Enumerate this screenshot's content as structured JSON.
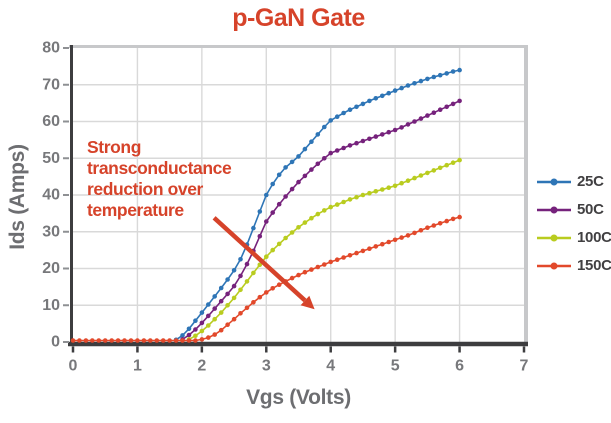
{
  "chart_data": {
    "type": "line",
    "title": "p-GaN Gate",
    "title_color": "#d6432a",
    "xlabel": "Vgs (Volts)",
    "ylabel": "Ids (Amps)",
    "xlim": [
      0,
      7
    ],
    "ylim": [
      0,
      80
    ],
    "x_ticks": [
      0,
      1,
      2,
      3,
      4,
      5,
      6,
      7
    ],
    "y_ticks": [
      0,
      10,
      20,
      30,
      40,
      50,
      60,
      70,
      80
    ],
    "grid": true,
    "legend_position": "right-outside",
    "x_step": 0.1,
    "series": [
      {
        "name": "25C",
        "color": "#2e75b6",
        "x0": 1.6,
        "values": [
          0.6,
          1.8,
          3.6,
          5.8,
          8,
          10.2,
          12.4,
          14.7,
          17,
          19.5,
          22.5,
          26.5,
          31,
          35.5,
          40,
          43,
          45.5,
          47.5,
          49,
          50.5,
          52.5,
          54.5,
          56.5,
          58.5,
          60.3,
          61.3,
          62.3,
          63.2,
          64,
          64.8,
          65.6,
          66.3,
          67,
          67.7,
          68.4,
          69.1,
          69.8,
          70.4,
          71,
          71.6,
          72.1,
          72.6,
          73.1,
          73.6,
          74
        ]
      },
      {
        "name": "50C",
        "color": "#76227c",
        "x0": 1.7,
        "values": [
          0.7,
          1.9,
          3.4,
          5.2,
          7.1,
          9.1,
          11.1,
          13.1,
          15.2,
          18,
          21.2,
          24.8,
          28.8,
          32.8,
          35.2,
          37.5,
          39.6,
          41.6,
          43.5,
          45.2,
          46.9,
          48.5,
          50,
          51.4,
          52.1,
          52.8,
          53.5,
          54.1,
          54.7,
          55.3,
          55.9,
          56.5,
          57.1,
          57.7,
          58.4,
          59.2,
          60,
          60.8,
          61.6,
          62.4,
          63.2,
          64,
          64.8,
          65.6
        ]
      },
      {
        "name": "100C",
        "color": "#b9cc1f",
        "x0": 1.8,
        "values": [
          0.7,
          1.7,
          3,
          4.5,
          6.2,
          8,
          10,
          12,
          14.2,
          16.5,
          18.8,
          21,
          23.2,
          25,
          26.7,
          28.3,
          29.8,
          31.2,
          32.5,
          33.7,
          34.8,
          35.8,
          36.7,
          37.4,
          38.1,
          38.8,
          39.4,
          40,
          40.5,
          41,
          41.5,
          42,
          42.5,
          43.2,
          43.9,
          44.6,
          45.3,
          46,
          46.7,
          47.4,
          48.1,
          48.8,
          49.5
        ]
      },
      {
        "name": "150C",
        "color": "#e2492b",
        "x0": 0,
        "values": [
          0.4,
          0.4,
          0.4,
          0.4,
          0.4,
          0.4,
          0.4,
          0.4,
          0.4,
          0.4,
          0.4,
          0.4,
          0.4,
          0.4,
          0.4,
          0.4,
          0.4,
          0.4,
          0.4,
          0.4,
          0.7,
          1.2,
          2,
          3.2,
          4.7,
          6.2,
          7.8,
          9.3,
          10.8,
          12.2,
          13.5,
          14.6,
          15.6,
          16.5,
          17.4,
          18.2,
          19,
          19.7,
          20.4,
          21.1,
          21.8,
          22.4,
          23,
          23.6,
          24.2,
          24.8,
          25.4,
          26,
          26.6,
          27.2,
          27.8,
          28.4,
          29,
          29.7,
          30.4,
          31.1,
          31.7,
          32.3,
          32.9,
          33.5,
          34
        ]
      }
    ],
    "annotation": {
      "lines": [
        "Strong",
        "transconductance",
        "reduction over",
        "temperature"
      ],
      "color": "#d6432a",
      "arrow": {
        "x1": 2.19,
        "y1": 33.8,
        "x2": 3.6,
        "y2": 11.3
      }
    },
    "colors": {
      "tick_label": "#77787b",
      "axis_title": "#6d6e71",
      "axis_dark": "#3d3d3f",
      "border_gray": "#c7c8ca",
      "gridline": "#d9d9d9",
      "legend_label": "#414042"
    }
  }
}
